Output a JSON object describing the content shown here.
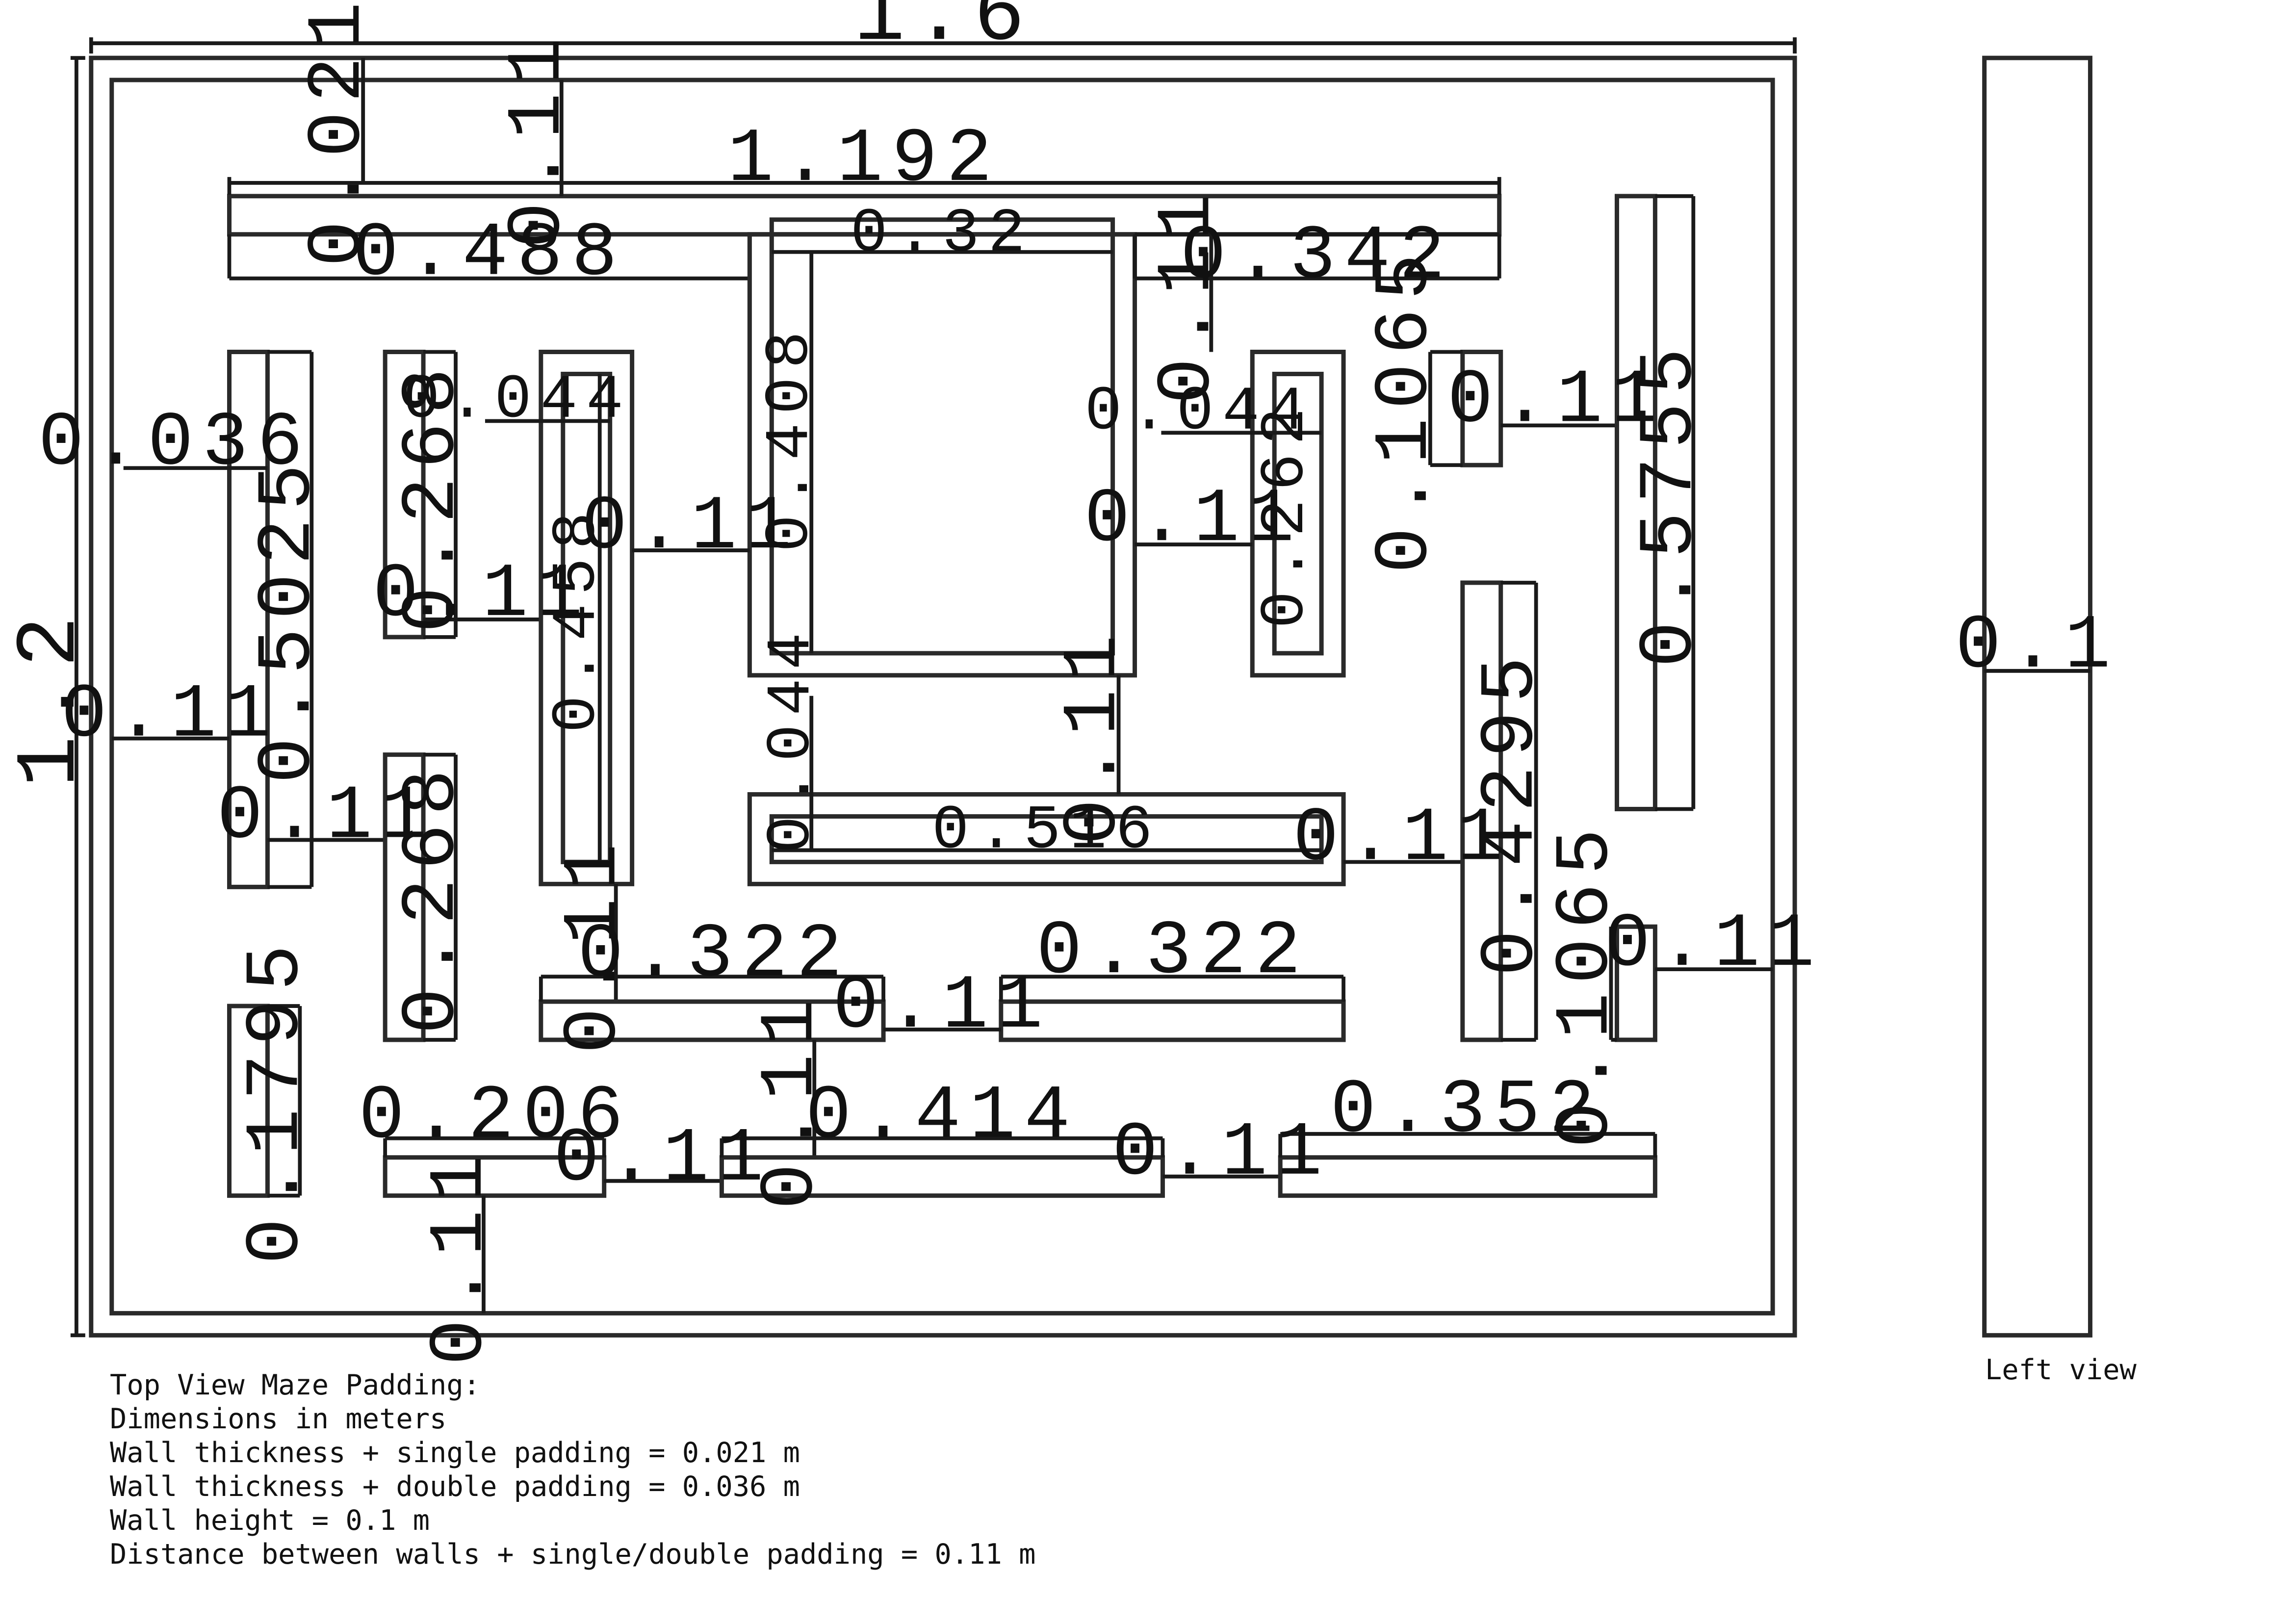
{
  "diagram": {
    "outer_width": "1.6",
    "outer_height": "1.2",
    "labels": {
      "d0021": "0.021",
      "d0011a": "0.11",
      "d1192": "1.192",
      "d0488": "0.488",
      "d032": "0.32",
      "d0011b": "0.11",
      "d0342": "0.342",
      "d0036": "0.036",
      "d0268a": "0.268",
      "d0044a": "0.044",
      "d0408": "0.408",
      "d0044b": "0.044",
      "d01065a": "0.1065",
      "d0011c": "0.11",
      "d05755": "0.5755",
      "d05025": "0.5025",
      "d0011d": "0.11",
      "d0011e": "0.11",
      "d0458": "0.458",
      "d0011f": "0.11",
      "d0262": "0.262",
      "d0011g": "0.11",
      "d0044c": "0.044",
      "d0011h": "0.11",
      "d0516": "0.516",
      "d0011i": "0.11",
      "d04295": "0.4295",
      "d0011j": "0.11",
      "d0268b": "0.268",
      "d0011k": "0.11",
      "d0322a": "0.322",
      "d0322b": "0.322",
      "d0011l": "0.11",
      "d01065b": "0.1065",
      "d0011m": "0.11",
      "d01795": "0.1795",
      "d0011n": "0.11",
      "d0206": "0.206",
      "d0414": "0.414",
      "d0352": "0.352",
      "d0011o": "0.11",
      "d0011p": "0.11",
      "d0011q": "0.11"
    },
    "left_view_width": "0.1"
  },
  "notes": [
    "Top View Maze Padding:",
    "Dimensions in meters",
    "Wall thickness + single padding = 0.021 m",
    "Wall thickness + double padding = 0.036 m",
    "Wall height = 0.1 m",
    "Distance between walls + single/double padding = 0.11 m"
  ],
  "left_view_caption": "Left view"
}
